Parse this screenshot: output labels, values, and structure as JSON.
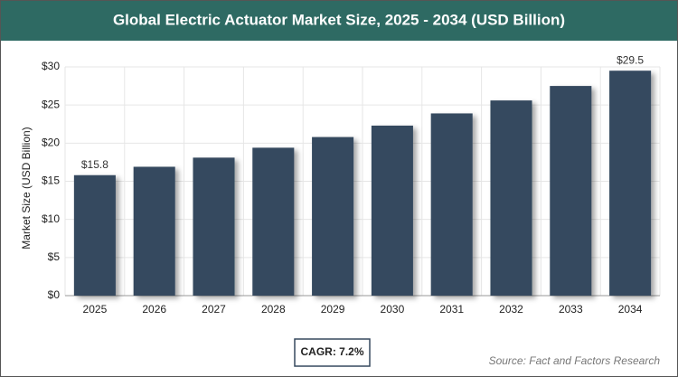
{
  "chart_data": {
    "type": "bar",
    "title": "Global Electric Actuator Market Size, 2025 - 2034 (USD Billion)",
    "y_label": "Market Size (USD Billion)",
    "categories": [
      "2025",
      "2026",
      "2027",
      "2028",
      "2029",
      "2030",
      "2031",
      "2032",
      "2033",
      "2034"
    ],
    "values": [
      15.8,
      16.9,
      18.1,
      19.4,
      20.8,
      22.3,
      23.9,
      25.6,
      27.5,
      29.5
    ],
    "value_labels": [
      "$15.8",
      null,
      null,
      null,
      null,
      null,
      null,
      null,
      null,
      "$29.5"
    ],
    "color": "#36495f",
    "ylim": [
      0,
      30
    ],
    "yticks": [
      {
        "value": 0,
        "label": "$0"
      },
      {
        "value": 5,
        "label": "$5"
      },
      {
        "value": 10,
        "label": "$10"
      },
      {
        "value": 15,
        "label": "$15"
      },
      {
        "value": 20,
        "label": "$20"
      },
      {
        "value": 25,
        "label": "$25"
      },
      {
        "value": 30,
        "label": "$30"
      }
    ],
    "grid": true,
    "cagr": "CAGR: 7.2%",
    "source": "Source: Fact and Factors Research"
  }
}
